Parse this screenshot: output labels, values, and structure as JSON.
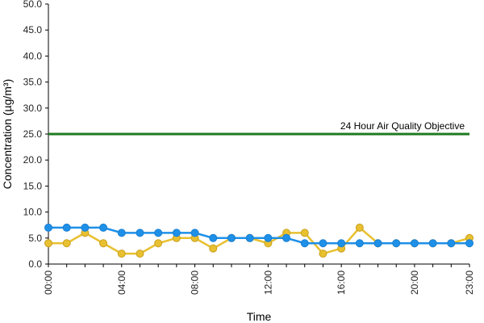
{
  "chart_data": {
    "type": "line",
    "title": "",
    "xlabel": "Time",
    "ylabel": "Concentration (µg/m³)",
    "ylim": [
      0,
      50
    ],
    "y_ticks": [
      "0.0",
      "5.0",
      "10.0",
      "15.0",
      "20.0",
      "25.0",
      "30.0",
      "35.0",
      "40.0",
      "45.0",
      "50.0"
    ],
    "x": [
      "00:00",
      "01:00",
      "02:00",
      "03:00",
      "04:00",
      "05:00",
      "06:00",
      "07:00",
      "08:00",
      "09:00",
      "10:00",
      "11:00",
      "12:00",
      "13:00",
      "14:00",
      "15:00",
      "16:00",
      "17:00",
      "18:00",
      "19:00",
      "20:00",
      "21:00",
      "22:00",
      "23:00"
    ],
    "x_tick_labels": [
      "00:00",
      "04:00",
      "08:00",
      "12:00",
      "16:00",
      "20:00",
      "23:00"
    ],
    "series": [
      {
        "color": "#1e90e8",
        "values": [
          7,
          7,
          7,
          7,
          6,
          6,
          6,
          6,
          6,
          5,
          5,
          5,
          5,
          5,
          4,
          4,
          4,
          4,
          4,
          4,
          4,
          4,
          4,
          4
        ]
      },
      {
        "color": "#e8c030",
        "values": [
          4,
          4,
          6,
          4,
          2,
          2,
          4,
          5,
          5,
          3,
          5,
          5,
          4,
          6,
          6,
          2,
          3,
          7,
          4,
          4,
          4,
          4,
          4,
          5
        ]
      }
    ],
    "reference_line": {
      "value": 25,
      "label": "24 Hour Air Quality Objective",
      "color": "#1f7a1f"
    },
    "grid": false
  }
}
